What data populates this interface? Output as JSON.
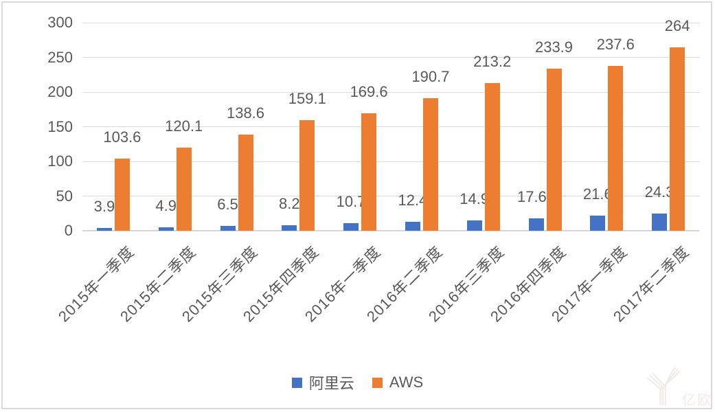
{
  "chart_data": {
    "type": "bar",
    "categories": [
      "2015年一季度",
      "2015年二季度",
      "2015年三季度",
      "2015年四季度",
      "2016年一季度",
      "2016年二季度",
      "2016年三季度",
      "2016年四季度",
      "2017年一季度",
      "2017年二季度"
    ],
    "series": [
      {
        "name": "阿里云",
        "color": "#4472C4",
        "values": [
          3.9,
          4.9,
          6.5,
          8.2,
          10.7,
          12.4,
          14.9,
          17.64,
          21.6,
          24.3
        ]
      },
      {
        "name": "AWS",
        "color": "#ED7D31",
        "values": [
          103.6,
          120.1,
          138.6,
          159.1,
          169.6,
          190.7,
          213.2,
          233.9,
          237.6,
          264
        ]
      }
    ],
    "title": "",
    "xlabel": "",
    "ylabel": "",
    "ylim": [
      0,
      300
    ],
    "yticks": [
      0,
      50,
      100,
      150,
      200,
      250,
      300
    ],
    "grid": true,
    "legend_position": "bottom",
    "data_labels_shown": true
  },
  "watermark": {
    "text": "亿欧",
    "logo": "eo-y-logo"
  },
  "colors": {
    "alicloud_blue": "#4472C4",
    "aws_orange": "#ED7D31",
    "text_gray": "#595959",
    "gridline_gray": "#D9D9D9"
  }
}
